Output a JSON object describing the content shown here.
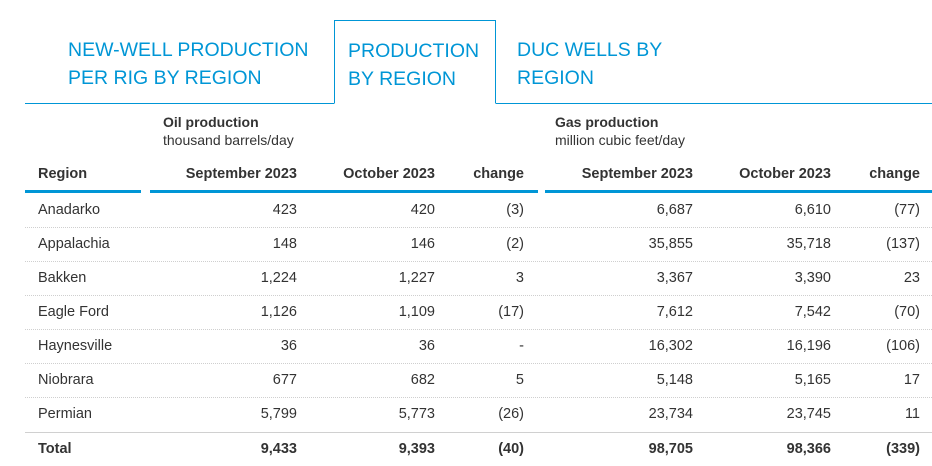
{
  "tabs": [
    {
      "line1": "NEW-WELL PRODUCTION",
      "line2": "PER RIG BY REGION",
      "active": false
    },
    {
      "line1": "PRODUCTION",
      "line2": "BY REGION",
      "active": true
    },
    {
      "line1": "DUC WELLS BY",
      "line2": "REGION",
      "active": false
    }
  ],
  "oil_group": {
    "title": "Oil production",
    "unit": "thousand barrels/day"
  },
  "gas_group": {
    "title": "Gas production",
    "unit": "million cubic feet/day"
  },
  "headers": {
    "region": "Region",
    "oil_sep": "September 2023",
    "oil_oct": "October 2023",
    "oil_change": "change",
    "gas_sep": "September 2023",
    "gas_oct": "October 2023",
    "gas_change": "change"
  },
  "rows": [
    {
      "region": "Anadarko",
      "oil_sep": "423",
      "oil_oct": "420",
      "oil_change": "(3)",
      "gas_sep": "6,687",
      "gas_oct": "6,610",
      "gas_change": "(77)"
    },
    {
      "region": "Appalachia",
      "oil_sep": "148",
      "oil_oct": "146",
      "oil_change": "(2)",
      "gas_sep": "35,855",
      "gas_oct": "35,718",
      "gas_change": "(137)"
    },
    {
      "region": "Bakken",
      "oil_sep": "1,224",
      "oil_oct": "1,227",
      "oil_change": "3",
      "gas_sep": "3,367",
      "gas_oct": "3,390",
      "gas_change": "23"
    },
    {
      "region": "Eagle Ford",
      "oil_sep": "1,126",
      "oil_oct": "1,109",
      "oil_change": "(17)",
      "gas_sep": "7,612",
      "gas_oct": "7,542",
      "gas_change": "(70)"
    },
    {
      "region": "Haynesville",
      "oil_sep": "36",
      "oil_oct": "36",
      "oil_change": "-",
      "gas_sep": "16,302",
      "gas_oct": "16,196",
      "gas_change": "(106)"
    },
    {
      "region": "Niobrara",
      "oil_sep": "677",
      "oil_oct": "682",
      "oil_change": "5",
      "gas_sep": "5,148",
      "gas_oct": "5,165",
      "gas_change": "17"
    },
    {
      "region": "Permian",
      "oil_sep": "5,799",
      "oil_oct": "5,773",
      "oil_change": "(26)",
      "gas_sep": "23,734",
      "gas_oct": "23,745",
      "gas_change": "11"
    }
  ],
  "total": {
    "region": "Total",
    "oil_sep": "9,433",
    "oil_oct": "9,393",
    "oil_change": "(40)",
    "gas_sep": "98,705",
    "gas_oct": "98,366",
    "gas_change": "(339)"
  },
  "colors": {
    "accent": "#0096d6",
    "text": "#333333"
  }
}
